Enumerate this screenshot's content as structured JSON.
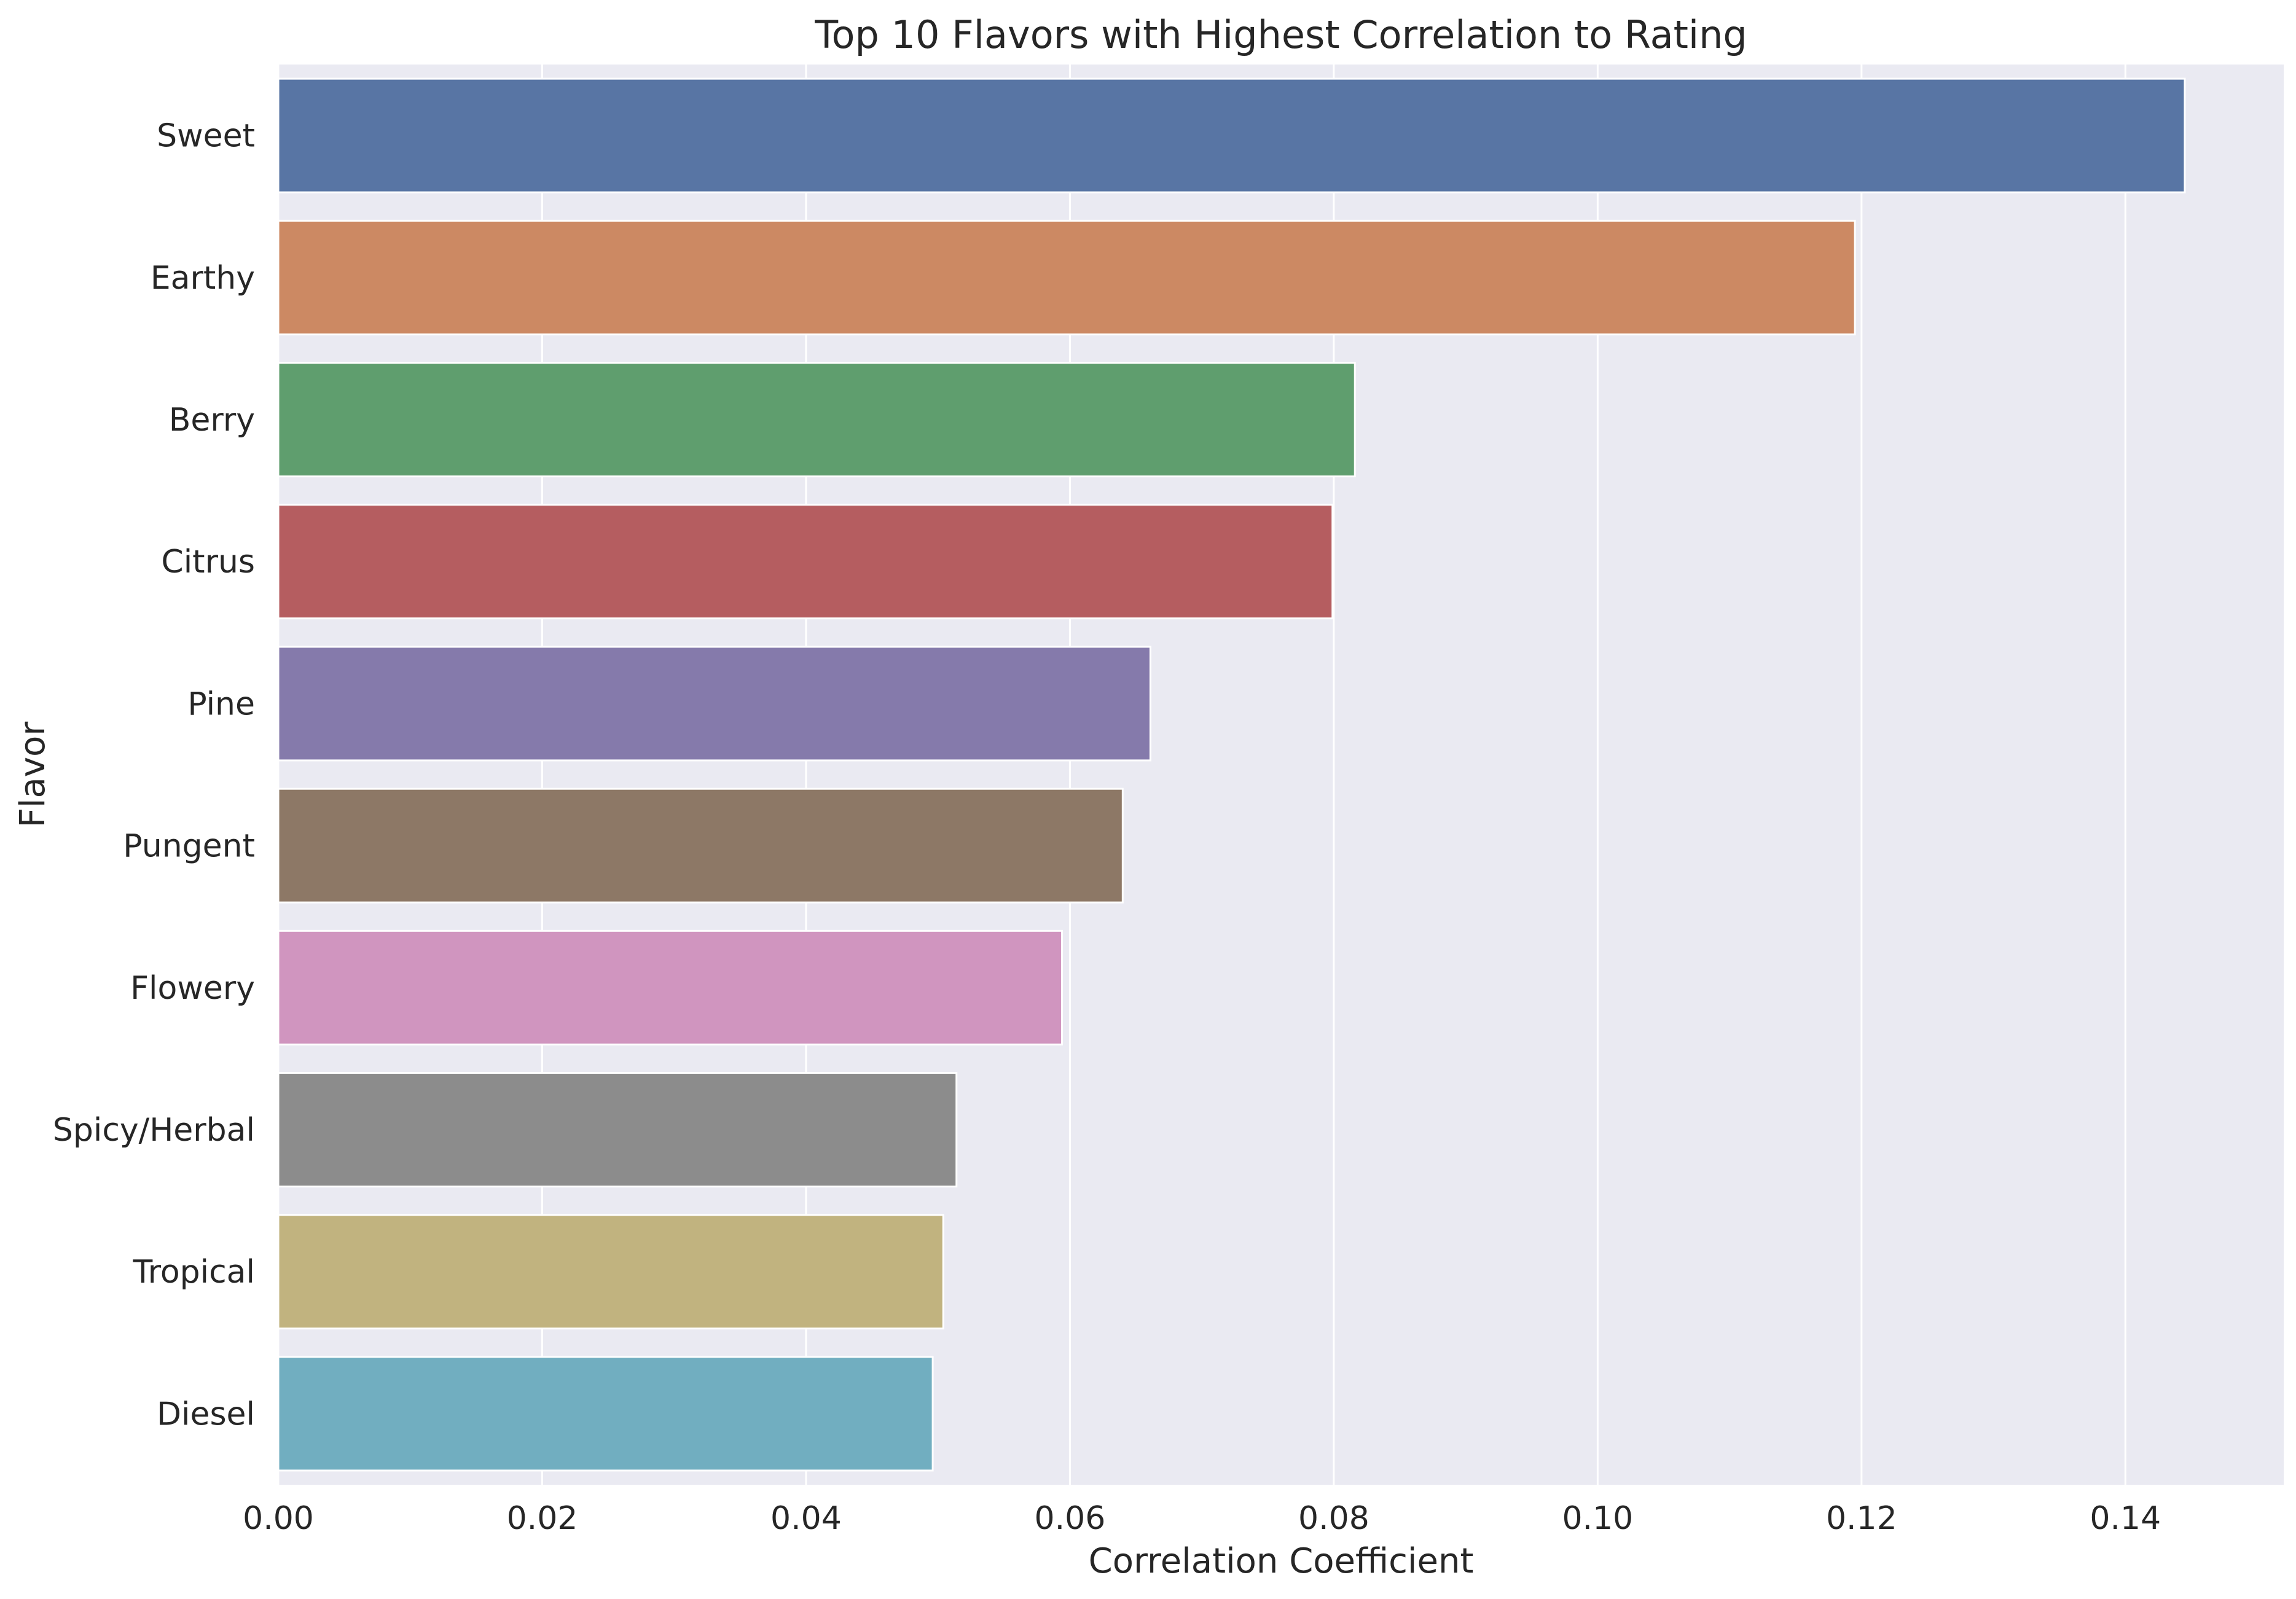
{
  "chart_data": {
    "type": "bar",
    "orientation": "horizontal",
    "title": "Top 10 Flavors with Highest Correlation to Rating",
    "xlabel": "Correlation Coefficient",
    "ylabel": "Flavor",
    "categories": [
      "Sweet",
      "Earthy",
      "Berry",
      "Citrus",
      "Pine",
      "Pungent",
      "Flowery",
      "Spicy/Herbal",
      "Tropical",
      "Diesel"
    ],
    "values": [
      0.1445,
      0.1195,
      0.0816,
      0.0799,
      0.0661,
      0.064,
      0.0594,
      0.0514,
      0.0504,
      0.0496
    ],
    "colors": [
      "#5875a4",
      "#cc8963",
      "#5f9e6e",
      "#b55d60",
      "#857aab",
      "#8d7866",
      "#d095bf",
      "#8c8c8c",
      "#c1b37f",
      "#71aec0"
    ],
    "xlim": [
      0,
      0.152
    ],
    "xticks": [
      0.0,
      0.02,
      0.04,
      0.06,
      0.08,
      0.1,
      0.12,
      0.14
    ],
    "xtick_labels": [
      "0.00",
      "0.02",
      "0.04",
      "0.06",
      "0.08",
      "0.10",
      "0.12",
      "0.14"
    ],
    "grid": true,
    "background": "#eaeaf2",
    "legend": false
  }
}
